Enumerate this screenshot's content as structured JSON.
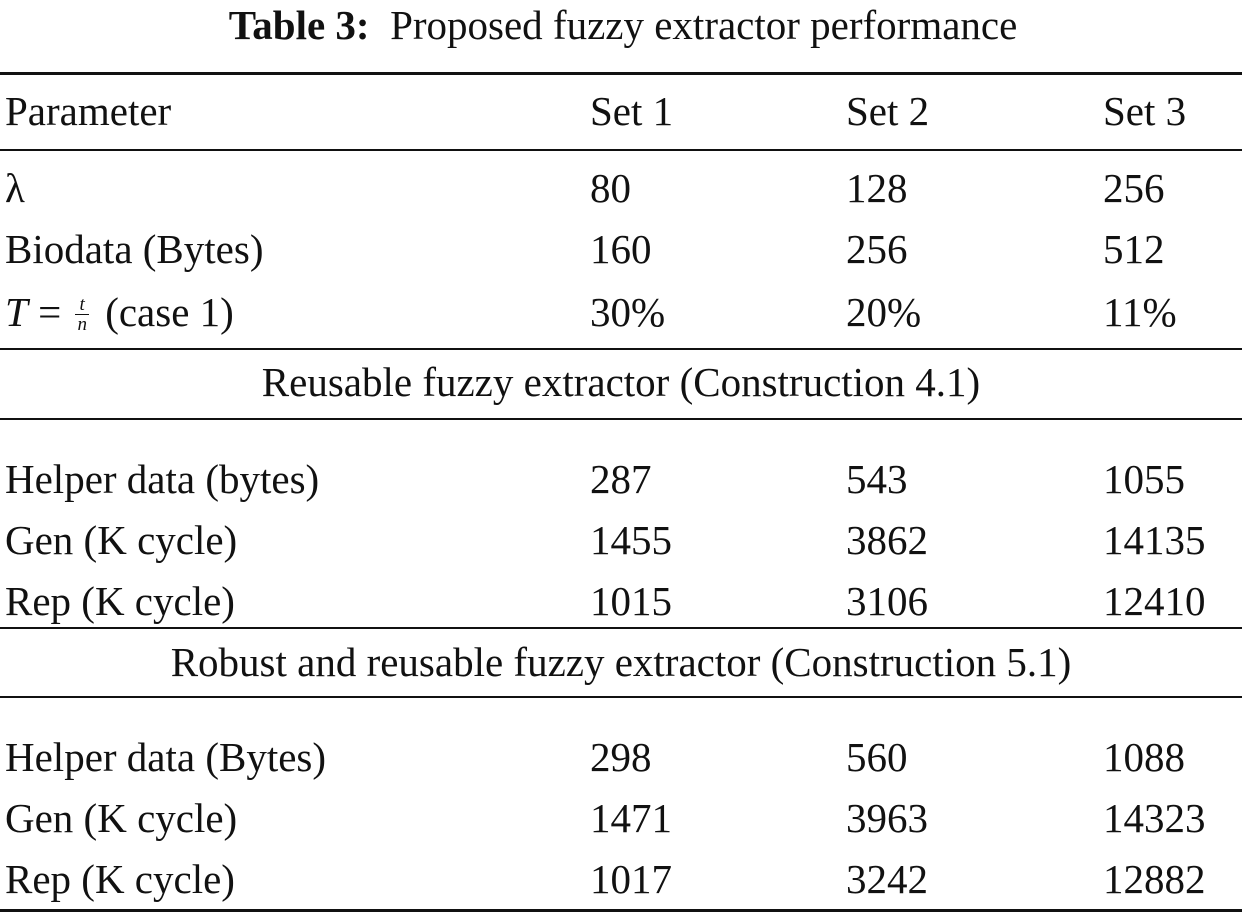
{
  "caption": {
    "label": "Table 3:",
    "text": "Proposed fuzzy extractor performance"
  },
  "header": [
    "Parameter",
    "Set 1",
    "Set 2",
    "Set 3"
  ],
  "params": {
    "lambda": {
      "label": "λ",
      "values": [
        "80",
        "128",
        "256"
      ]
    },
    "biodata": {
      "label": "Biodata (Bytes)",
      "values": [
        "160",
        "256",
        "512"
      ]
    },
    "threshold": {
      "lhs": "T",
      "eq": "=",
      "num": "t",
      "den": "n",
      "suffix": "(case 1)",
      "values": [
        "30%",
        "20%",
        "11%"
      ]
    }
  },
  "sections": [
    {
      "title": "Reusable fuzzy extractor (Construction 4.1)",
      "rows": [
        {
          "label": "Helper data (bytes)",
          "values": [
            "287",
            "543",
            "1055"
          ]
        },
        {
          "label": "Gen (K cycle)",
          "values": [
            "1455",
            "3862",
            "14135"
          ]
        },
        {
          "label": "Rep (K cycle)",
          "values": [
            "1015",
            "3106",
            "12410"
          ]
        }
      ]
    },
    {
      "title": "Robust and reusable fuzzy extractor (Construction 5.1)",
      "rows": [
        {
          "label": "Helper data (Bytes)",
          "values": [
            "298",
            "560",
            "1088"
          ]
        },
        {
          "label": "Gen (K cycle)",
          "values": [
            "1471",
            "3963",
            "14323"
          ]
        },
        {
          "label": "Rep (K cycle)",
          "values": [
            "1017",
            "3242",
            "12882"
          ]
        }
      ]
    }
  ]
}
